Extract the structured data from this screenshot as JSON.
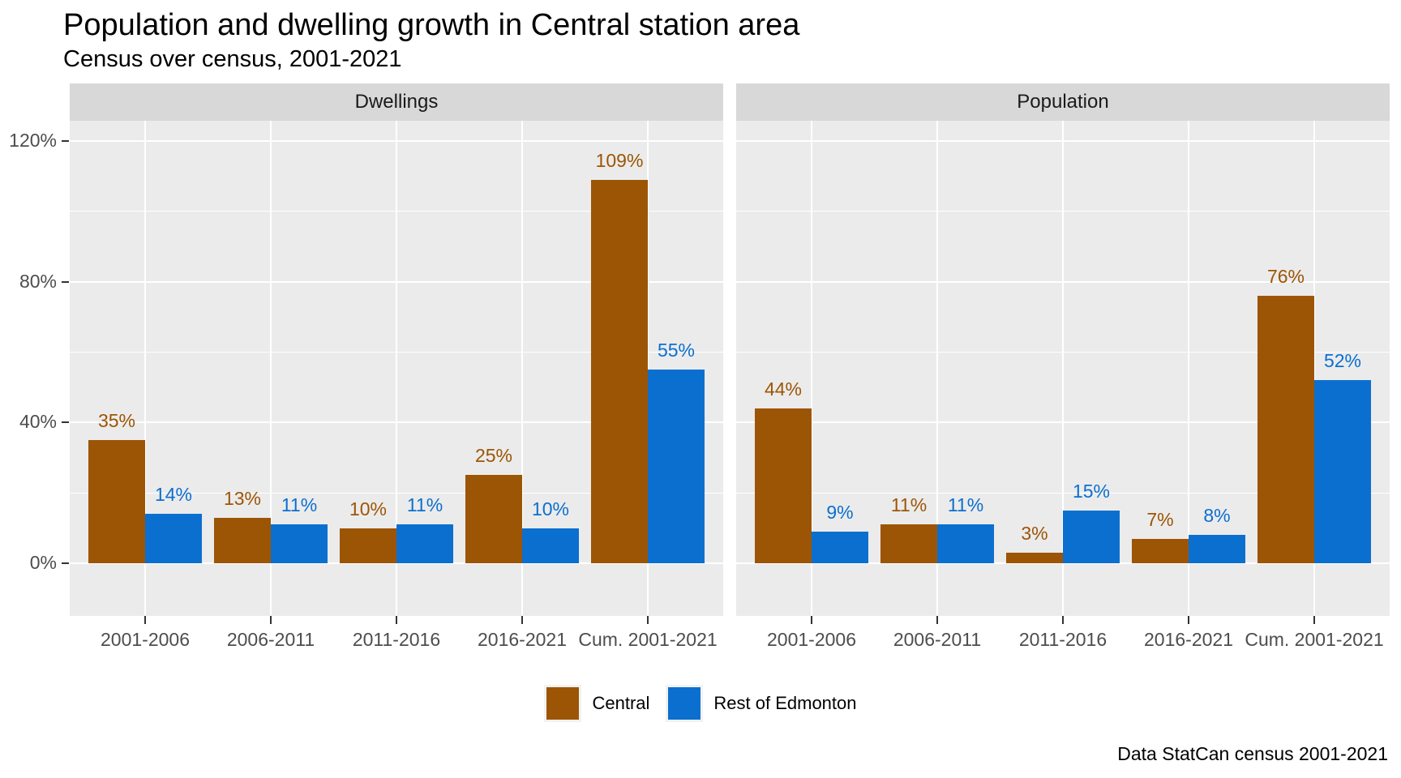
{
  "title": "Population and dwelling growth in Central station area",
  "subtitle": "Census over census, 2001-2021",
  "caption": "Data StatCan census 2001-2021",
  "colors": {
    "central": "#9c5505",
    "rest": "#0b6fd0",
    "panel_bg": "#ebebeb",
    "strip_bg": "#d8d8d8",
    "grid": "#ffffff",
    "axis_text": "#4d4d4d",
    "tick": "#333333"
  },
  "legend": {
    "position": "bottom",
    "items": [
      {
        "label": "Central",
        "color_key": "central"
      },
      {
        "label": "Rest of Edmonton",
        "color_key": "rest"
      }
    ]
  },
  "chart_data": {
    "type": "bar",
    "orientation": "vertical-dodged",
    "categories": [
      "2001-2006",
      "2006-2011",
      "2011-2016",
      "2016-2021",
      "Cum. 2001-2021"
    ],
    "y_axis": {
      "tick_values": [
        0,
        40,
        80,
        120
      ],
      "tick_labels": [
        "0%",
        "40%",
        "80%",
        "120%"
      ],
      "minor_values": [
        20,
        60,
        100
      ],
      "range": [
        -15,
        128
      ]
    },
    "value_suffix": "%",
    "grid": {
      "horizontal_major": true,
      "horizontal_minor": true,
      "vertical_major_at_categories": true
    },
    "facets": [
      {
        "label": "Dwellings",
        "series": [
          {
            "name": "Central",
            "color_key": "central",
            "values": [
              35,
              13,
              10,
              25,
              109
            ]
          },
          {
            "name": "Rest of Edmonton",
            "color_key": "rest",
            "values": [
              14,
              11,
              11,
              10,
              55
            ]
          }
        ]
      },
      {
        "label": "Population",
        "series": [
          {
            "name": "Central",
            "color_key": "central",
            "values": [
              44,
              11,
              3,
              7,
              76
            ]
          },
          {
            "name": "Rest of Edmonton",
            "color_key": "rest",
            "values": [
              9,
              11,
              15,
              8,
              52
            ]
          }
        ]
      }
    ]
  }
}
